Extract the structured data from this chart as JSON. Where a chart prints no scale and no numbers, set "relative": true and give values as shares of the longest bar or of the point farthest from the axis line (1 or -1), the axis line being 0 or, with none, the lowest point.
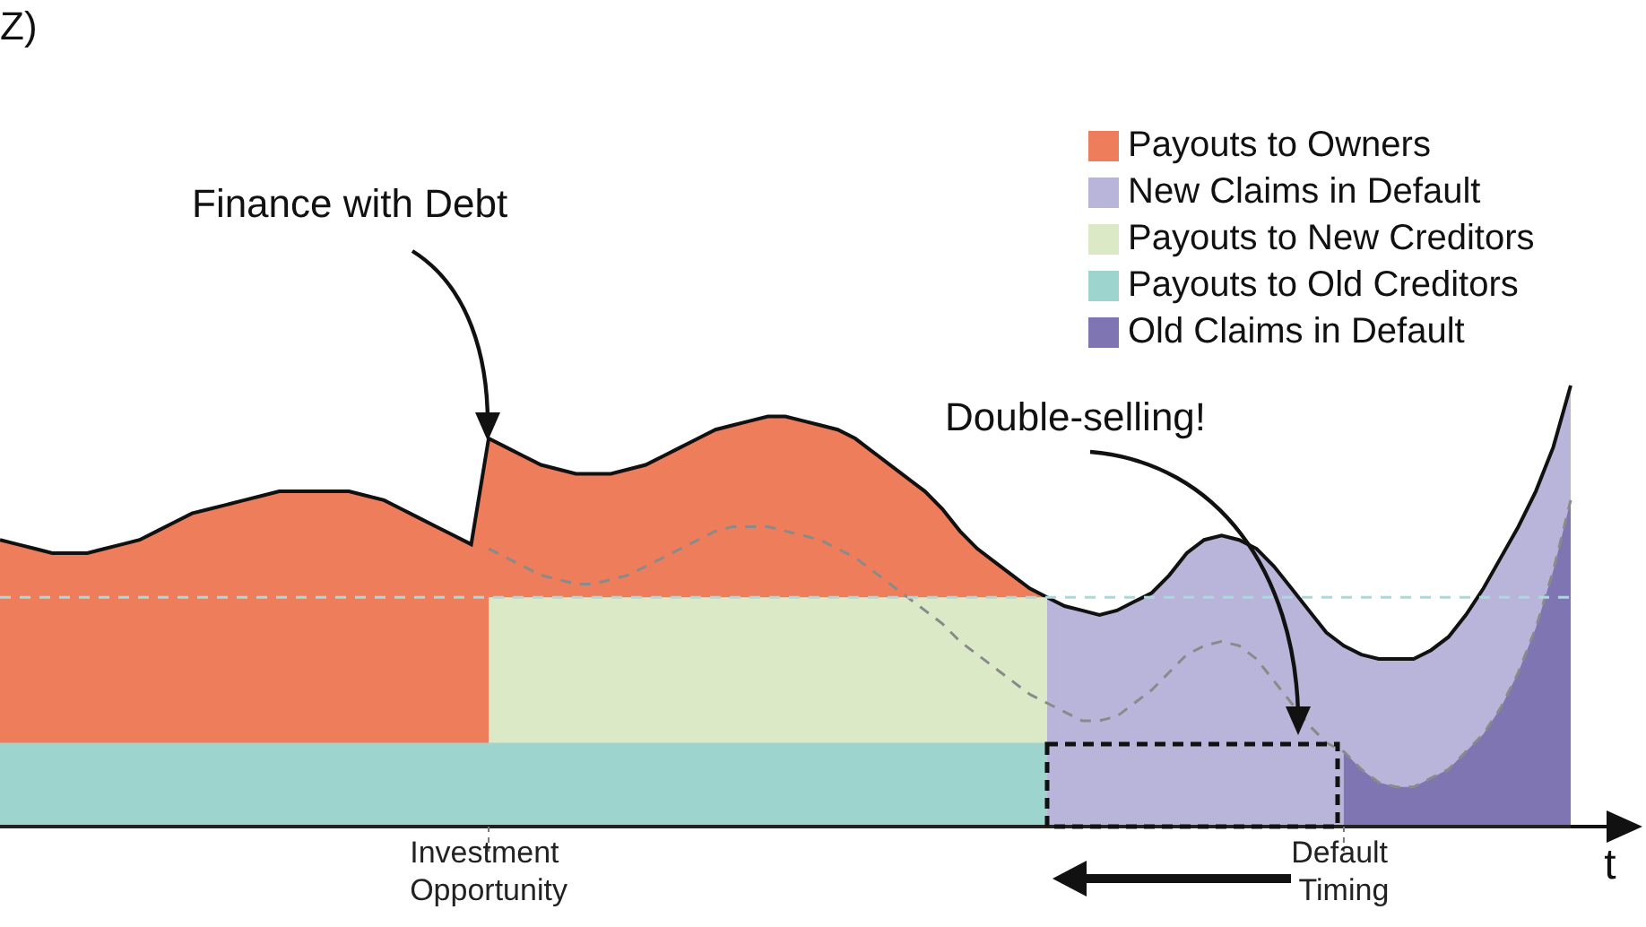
{
  "chart_data": {
    "type": "area",
    "relative": true,
    "legend": "top right",
    "xlabel": "t",
    "annotations": [
      "Z)",
      "Finance with Debt",
      "Double-selling!"
    ],
    "categories": [
      null,
      null,
      null,
      null,
      null,
      null,
      null,
      null,
      null,
      null,
      null,
      null,
      null,
      null,
      null,
      null,
      null,
      null,
      null,
      null,
      null,
      null,
      null,
      null,
      null,
      null,
      null,
      null,
      "Investment Opportunity",
      null,
      null,
      null,
      null,
      null,
      null,
      null,
      null,
      null,
      null,
      null,
      null,
      null,
      null,
      null,
      null,
      null,
      null,
      null,
      null,
      null,
      null,
      null,
      null,
      null,
      null,
      null,
      null,
      null,
      null,
      null,
      null,
      null,
      null,
      null,
      null,
      null,
      null,
      null,
      null,
      null,
      null,
      null,
      null,
      null,
      null,
      null,
      null,
      "Default Timing",
      null,
      null,
      null,
      null,
      null,
      null,
      null,
      null,
      null,
      null,
      null,
      null,
      null
    ],
    "series": [
      {
        "name": "Payouts to Owners",
        "color": "#ee7d5b",
        "values": [
          0.65,
          0.64,
          0.63,
          0.62,
          0.62,
          0.62,
          0.63,
          0.64,
          0.65,
          0.67,
          0.69,
          0.71,
          0.72,
          0.73,
          0.74,
          0.75,
          0.76,
          0.76,
          0.76,
          0.76,
          0.76,
          0.75,
          0.74,
          0.72,
          0.7,
          0.68,
          0.66,
          0.64,
          0.88,
          0.86,
          0.84,
          0.82,
          0.81,
          0.8,
          0.8,
          0.8,
          0.81,
          0.82,
          0.84,
          0.86,
          0.88,
          0.9,
          0.91,
          0.92,
          0.93,
          0.93,
          0.92,
          0.91,
          0.9,
          0.88,
          0.85,
          0.82,
          0.79,
          0.76,
          0.72,
          0.67,
          0.63,
          0.6,
          0.57,
          0.54,
          0.52,
          null,
          null,
          null,
          null,
          null,
          null,
          null,
          null,
          null,
          null,
          null,
          null,
          null,
          null,
          null,
          null,
          null,
          null,
          null,
          null,
          null,
          null,
          null,
          null,
          null,
          null,
          null,
          null,
          null,
          null
        ]
      },
      {
        "name": "New Claims in Default",
        "color": "#b8b4da",
        "values": [
          null,
          null,
          null,
          null,
          null,
          null,
          null,
          null,
          null,
          null,
          null,
          null,
          null,
          null,
          null,
          null,
          null,
          null,
          null,
          null,
          null,
          null,
          null,
          null,
          null,
          null,
          null,
          null,
          null,
          null,
          null,
          null,
          null,
          null,
          null,
          null,
          null,
          null,
          null,
          null,
          null,
          null,
          null,
          null,
          null,
          null,
          null,
          null,
          null,
          null,
          null,
          null,
          null,
          null,
          null,
          null,
          null,
          null,
          null,
          null,
          0.52,
          0.5,
          0.49,
          0.48,
          0.49,
          0.51,
          0.53,
          0.57,
          0.62,
          0.65,
          0.66,
          0.65,
          0.63,
          0.59,
          0.54,
          0.49,
          0.44,
          0.41,
          0.39,
          0.38,
          0.38,
          0.38,
          0.4,
          0.43,
          0.48,
          0.54,
          0.61,
          0.68,
          0.76,
          0.86,
          1
        ]
      },
      {
        "name": "Payouts to New Creditors",
        "color": "#dce9c6",
        "values": [
          null,
          null,
          null,
          null,
          null,
          null,
          null,
          null,
          null,
          null,
          null,
          null,
          null,
          null,
          null,
          null,
          null,
          null,
          null,
          null,
          null,
          null,
          null,
          null,
          null,
          null,
          null,
          null,
          0.52,
          0.52,
          0.52,
          0.52,
          0.52,
          0.52,
          0.52,
          0.52,
          0.52,
          0.52,
          0.52,
          0.52,
          0.52,
          0.52,
          0.52,
          0.52,
          0.52,
          0.52,
          0.52,
          0.52,
          0.52,
          0.52,
          0.52,
          0.52,
          0.52,
          0.52,
          0.52,
          0.52,
          0.52,
          0.52,
          0.52,
          0.52,
          0.52,
          null,
          null,
          null,
          null,
          null,
          null,
          null,
          null,
          null,
          null,
          null,
          null,
          null,
          null,
          null,
          null,
          null,
          null,
          null,
          null,
          null,
          null,
          null,
          null,
          null,
          null,
          null,
          null,
          null,
          null
        ]
      },
      {
        "name": "Payouts to Old Creditors",
        "color": "#9dd5ce",
        "values": [
          0.19,
          0.19,
          0.19,
          0.19,
          0.19,
          0.19,
          0.19,
          0.19,
          0.19,
          0.19,
          0.19,
          0.19,
          0.19,
          0.19,
          0.19,
          0.19,
          0.19,
          0.19,
          0.19,
          0.19,
          0.19,
          0.19,
          0.19,
          0.19,
          0.19,
          0.19,
          0.19,
          0.19,
          0.19,
          0.19,
          0.19,
          0.19,
          0.19,
          0.19,
          0.19,
          0.19,
          0.19,
          0.19,
          0.19,
          0.19,
          0.19,
          0.19,
          0.19,
          0.19,
          0.19,
          0.19,
          0.19,
          0.19,
          0.19,
          0.19,
          0.19,
          0.19,
          0.19,
          0.19,
          0.19,
          0.19,
          0.19,
          0.19,
          0.19,
          0.19,
          0.19,
          null,
          null,
          null,
          null,
          null,
          null,
          null,
          null,
          null,
          null,
          null,
          null,
          null,
          null,
          null,
          null,
          null,
          null,
          null,
          null,
          null,
          null,
          null,
          null,
          null,
          null,
          null,
          null,
          null,
          null
        ]
      },
      {
        "name": "Old Claims in Default",
        "color": "#7f75b3",
        "values": [
          null,
          null,
          null,
          null,
          null,
          null,
          null,
          null,
          null,
          null,
          null,
          null,
          null,
          null,
          null,
          null,
          null,
          null,
          null,
          null,
          null,
          null,
          null,
          null,
          null,
          null,
          null,
          null,
          null,
          null,
          null,
          null,
          null,
          null,
          null,
          null,
          null,
          null,
          null,
          null,
          null,
          null,
          null,
          null,
          null,
          null,
          null,
          null,
          null,
          null,
          null,
          null,
          null,
          null,
          null,
          null,
          null,
          null,
          null,
          null,
          null,
          null,
          null,
          null,
          null,
          null,
          null,
          null,
          null,
          null,
          null,
          null,
          null,
          null,
          null,
          null,
          null,
          0.17,
          0.13,
          0.1,
          0.09,
          0.09,
          0.11,
          0.13,
          0.17,
          0.21,
          0.27,
          0.35,
          0.45,
          0.58,
          0.74
        ]
      },
      {
        "type": "line",
        "line_style": "dashed",
        "color": "#8a8a8a",
        "values": [
          null,
          null,
          null,
          null,
          null,
          null,
          null,
          null,
          null,
          null,
          null,
          null,
          null,
          null,
          null,
          null,
          null,
          null,
          null,
          null,
          null,
          null,
          null,
          null,
          null,
          null,
          null,
          null,
          0.63,
          0.61,
          0.59,
          0.57,
          0.56,
          0.55,
          0.55,
          0.56,
          0.57,
          0.59,
          0.61,
          0.63,
          0.65,
          0.67,
          0.68,
          0.68,
          0.68,
          0.67,
          0.66,
          0.65,
          0.63,
          0.61,
          0.58,
          0.55,
          0.52,
          0.49,
          0.46,
          0.42,
          0.39,
          0.36,
          0.33,
          0.3,
          0.28,
          0.26,
          0.24,
          0.24,
          0.25,
          0.28,
          0.31,
          0.35,
          0.39,
          0.41,
          0.42,
          0.41,
          0.38,
          0.33,
          0.28,
          0.23,
          0.19,
          0.17,
          0.13,
          0.1,
          0.09,
          0.09,
          0.11,
          0.13,
          0.17,
          0.21,
          0.27,
          0.35,
          0.45,
          0.58,
          0.74
        ]
      },
      {
        "type": "line",
        "line_style": "dashed",
        "color": "#a9d9da",
        "values": [
          0.52,
          0.52,
          0.52,
          0.52,
          0.52,
          0.52,
          0.52,
          0.52,
          0.52,
          0.52,
          0.52,
          0.52,
          0.52,
          0.52,
          0.52,
          0.52,
          0.52,
          0.52,
          0.52,
          0.52,
          0.52,
          0.52,
          0.52,
          0.52,
          0.52,
          0.52,
          0.52,
          0.52,
          0.52,
          0.52,
          0.52,
          0.52,
          0.52,
          0.52,
          0.52,
          0.52,
          0.52,
          0.52,
          0.52,
          0.52,
          0.52,
          0.52,
          0.52,
          0.52,
          0.52,
          0.52,
          0.52,
          0.52,
          0.52,
          0.52,
          0.52,
          0.52,
          0.52,
          0.52,
          0.52,
          0.52,
          0.52,
          0.52,
          0.52,
          0.52,
          0.52,
          0.52,
          0.52,
          0.52,
          0.52,
          0.52,
          0.52,
          0.52,
          0.52,
          0.52,
          0.52,
          0.52,
          0.52,
          0.52,
          0.52,
          0.52,
          0.52,
          0.52,
          0.52,
          0.52,
          0.52,
          0.52,
          0.52,
          0.52,
          0.52,
          0.52,
          0.52,
          0.52,
          0.52,
          0.52,
          0.52
        ]
      }
    ]
  }
}
